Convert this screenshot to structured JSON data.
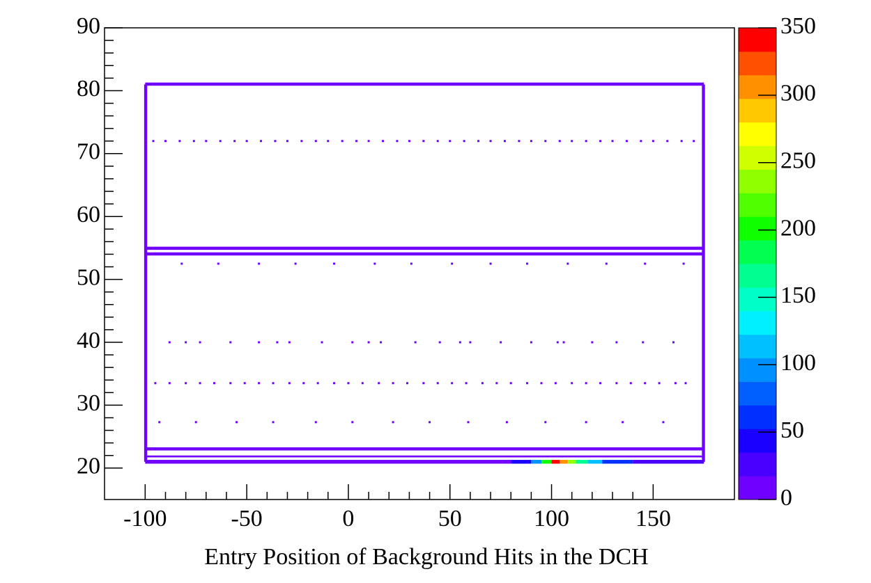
{
  "chart_data": {
    "type": "heatmap",
    "xlabel": "Entry Position of Background Hits in the DCH",
    "xlim": [
      -120,
      190
    ],
    "xticks": [
      -100,
      -50,
      0,
      50,
      100,
      150
    ],
    "ylim": [
      15,
      90
    ],
    "yticks": [
      20,
      30,
      40,
      50,
      60,
      70,
      80,
      90
    ],
    "zlim": [
      0,
      350
    ],
    "zticks": [
      0,
      50,
      100,
      150,
      200,
      250,
      300,
      350
    ],
    "palette": [
      "#7000ff",
      "#4a00ff",
      "#1a00ff",
      "#0030ff",
      "#0060ff",
      "#0090ff",
      "#00c0ff",
      "#00f0ff",
      "#00ffc8",
      "#00ff90",
      "#00ff50",
      "#10ff00",
      "#50ff00",
      "#90ff00",
      "#d0ff00",
      "#ffff00",
      "#ffc800",
      "#ff9000",
      "#ff5000",
      "#ff0000"
    ],
    "segments": [
      {
        "x": [
          -100,
          175
        ],
        "y": [
          80.8,
          81.3
        ],
        "value": 1
      },
      {
        "x": [
          -100,
          175
        ],
        "y": [
          54.7,
          55.2
        ],
        "value": 2
      },
      {
        "x": [
          -100,
          175
        ],
        "y": [
          53.8,
          54.3
        ],
        "value": 1
      },
      {
        "x": [
          -100,
          175
        ],
        "y": [
          22.8,
          23.3
        ],
        "value": 1
      },
      {
        "x": [
          -100,
          175
        ],
        "y": [
          21.7,
          22.0
        ],
        "value": 1
      },
      {
        "x": [
          -100.5,
          -99
        ],
        "y": [
          21,
          81
        ],
        "value": 1
      },
      {
        "x": [
          174,
          175.5
        ],
        "y": [
          21,
          81
        ],
        "value": 1
      },
      {
        "x": [
          -100,
          80
        ],
        "y": [
          20.7,
          21.3
        ],
        "value": 10
      },
      {
        "x": [
          80,
          90
        ],
        "y": [
          20.7,
          21.3
        ],
        "value": 40
      },
      {
        "x": [
          90,
          95
        ],
        "y": [
          20.7,
          21.3
        ],
        "value": 90
      },
      {
        "x": [
          95,
          100
        ],
        "y": [
          20.7,
          21.3
        ],
        "value": 200
      },
      {
        "x": [
          100,
          104
        ],
        "y": [
          20.7,
          21.3
        ],
        "value": 350
      },
      {
        "x": [
          104,
          108
        ],
        "y": [
          20.7,
          21.3
        ],
        "value": 300
      },
      {
        "x": [
          108,
          112
        ],
        "y": [
          20.7,
          21.3
        ],
        "value": 240
      },
      {
        "x": [
          112,
          118
        ],
        "y": [
          20.7,
          21.3
        ],
        "value": 160
      },
      {
        "x": [
          118,
          125
        ],
        "y": [
          20.7,
          21.3
        ],
        "value": 110
      },
      {
        "x": [
          125,
          140
        ],
        "y": [
          20.7,
          21.3
        ],
        "value": 60
      },
      {
        "x": [
          140,
          175
        ],
        "y": [
          20.7,
          21.3
        ],
        "value": 25
      }
    ],
    "dot_rows": [
      {
        "y": 72,
        "value": 1,
        "x": [
          -96,
          -90,
          -83,
          -76,
          -70,
          -63,
          -56,
          -50,
          -43,
          -36,
          -30,
          -23,
          -16,
          -10,
          -3,
          4,
          10,
          17,
          24,
          30,
          37,
          44,
          50,
          57,
          64,
          70,
          77,
          84,
          90,
          97,
          104,
          110,
          117,
          124,
          130,
          137,
          144,
          150,
          157,
          164,
          170
        ]
      },
      {
        "y": 52.5,
        "value": 1,
        "x": [
          -82,
          -64,
          -44,
          -26,
          -7,
          13,
          31,
          51,
          70,
          88,
          108,
          127,
          146,
          165
        ]
      },
      {
        "y": 40,
        "value": 1,
        "x": [
          -88,
          -80,
          -73,
          -58,
          -44,
          -35,
          -29,
          -13,
          2,
          10,
          16,
          33,
          45,
          55,
          60,
          75,
          90,
          103,
          106,
          120,
          132,
          145,
          160
        ]
      },
      {
        "y": 33.5,
        "value": 1,
        "x": [
          -95,
          -88,
          -80,
          -73,
          -66,
          -58,
          -51,
          -44,
          -37,
          -29,
          -22,
          -15,
          -7,
          0,
          7,
          15,
          22,
          29,
          37,
          44,
          51,
          58,
          66,
          73,
          80,
          88,
          95,
          102,
          110,
          117,
          124,
          132,
          139,
          146,
          153,
          161,
          166
        ]
      },
      {
        "y": 27.3,
        "value": 1,
        "x": [
          -93,
          -75,
          -55,
          -37,
          -16,
          2,
          22,
          40,
          59,
          78,
          97,
          117,
          135,
          155
        ]
      }
    ]
  }
}
